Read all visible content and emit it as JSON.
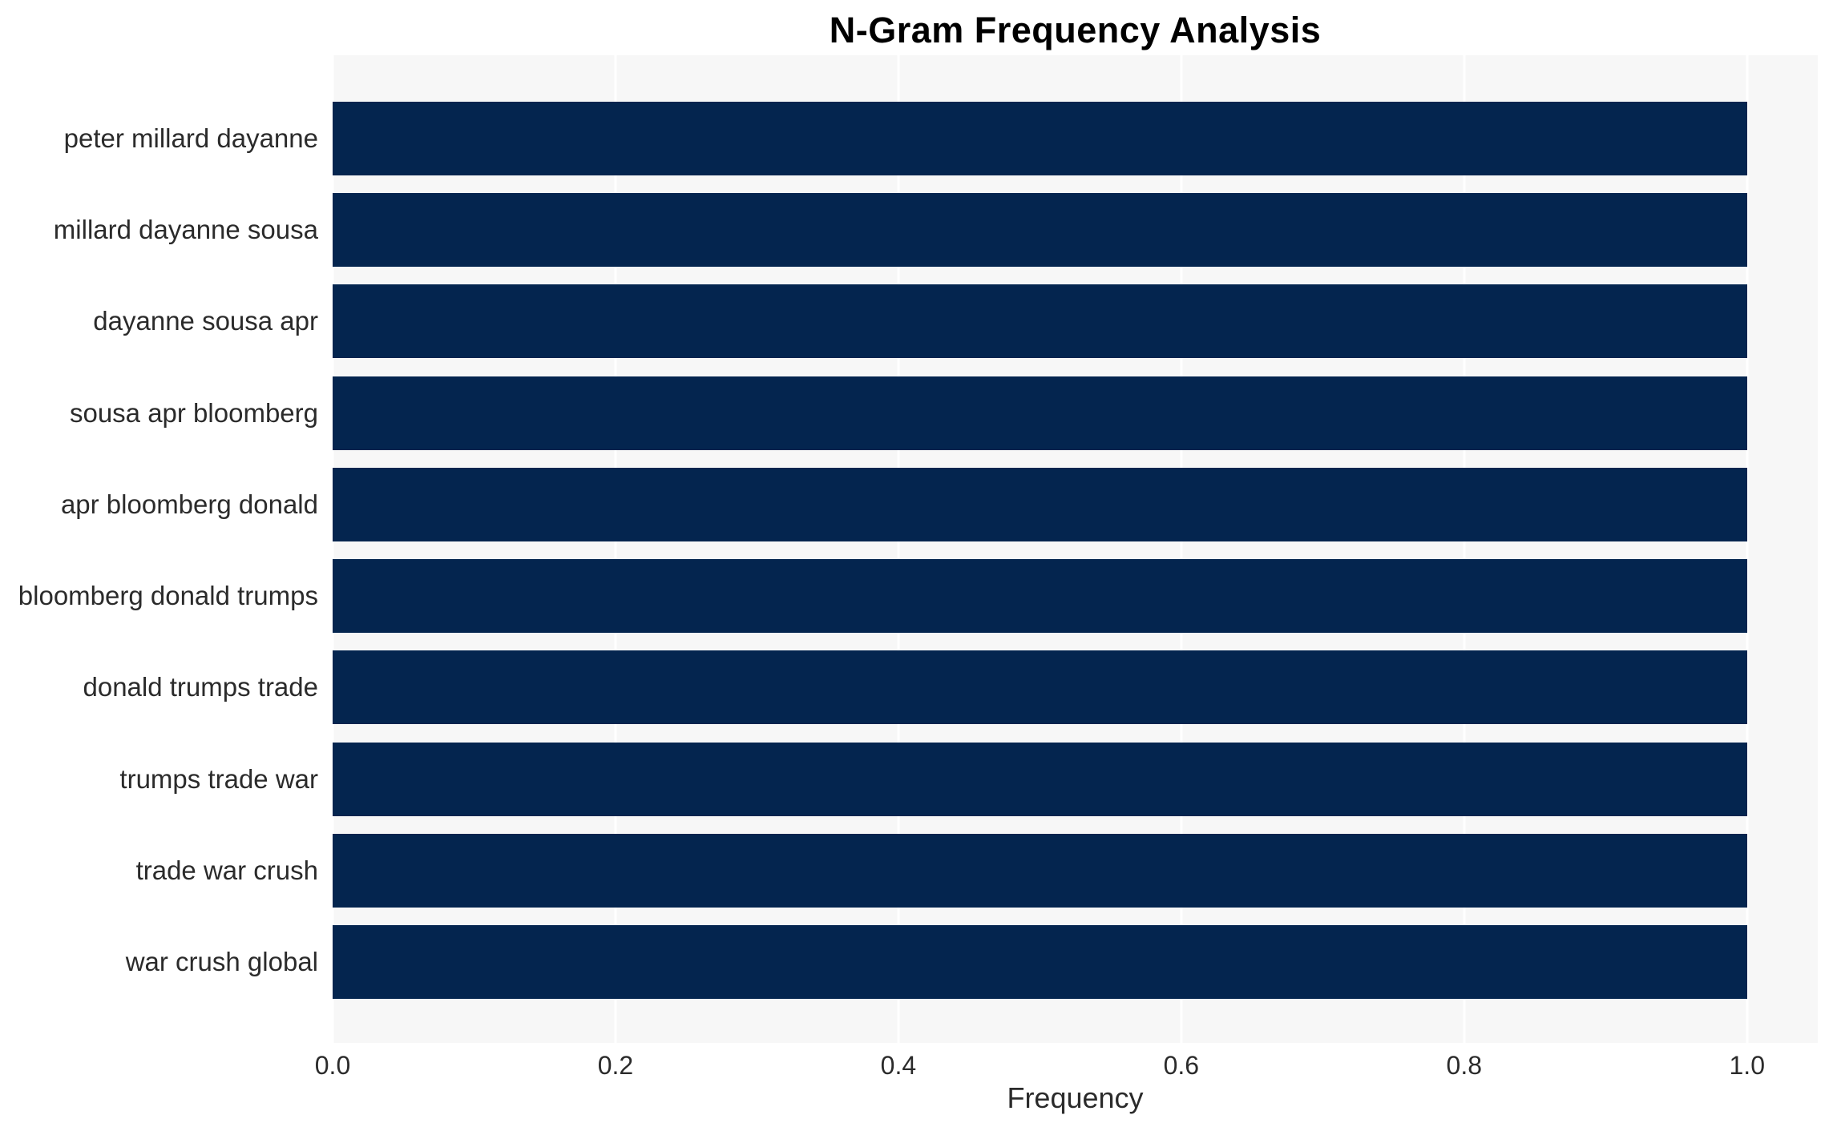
{
  "chart_data": {
    "type": "bar",
    "orientation": "horizontal",
    "title": "N-Gram Frequency Analysis",
    "xlabel": "Frequency",
    "ylabel": "",
    "categories": [
      "peter millard dayanne",
      "millard dayanne sousa",
      "dayanne sousa apr",
      "sousa apr bloomberg",
      "apr bloomberg donald",
      "bloomberg donald trumps",
      "donald trumps trade",
      "trumps trade war",
      "trade war crush",
      "war crush global"
    ],
    "values": [
      1.0,
      1.0,
      1.0,
      1.0,
      1.0,
      1.0,
      1.0,
      1.0,
      1.0,
      1.0
    ],
    "xlim": [
      0,
      1.05
    ],
    "xticks": [
      0.0,
      0.2,
      0.4,
      0.6,
      0.8,
      1.0
    ],
    "xtick_labels": [
      "0.0",
      "0.2",
      "0.4",
      "0.6",
      "0.8",
      "1.0"
    ],
    "grid": true,
    "gridline_axis": "x",
    "legend": null,
    "colors": {
      "bar": "#04254f",
      "plot_bg": "#f7f7f7",
      "grid": "#ffffff",
      "text": "#2b2b2b",
      "title": "#000000"
    }
  }
}
